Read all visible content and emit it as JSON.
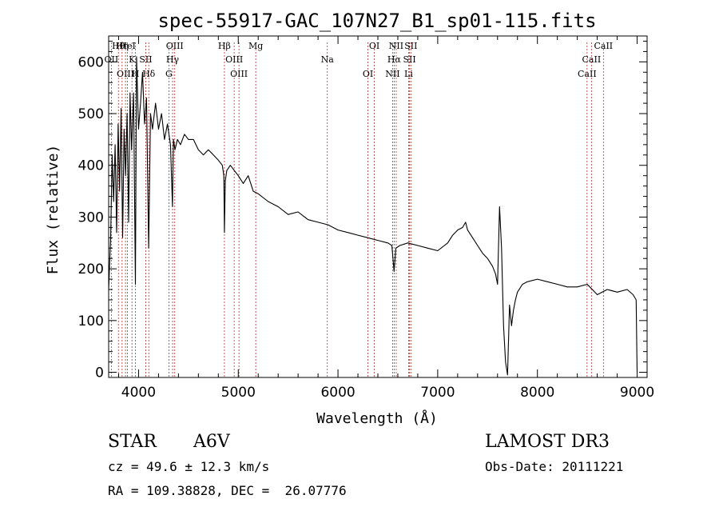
{
  "chart_data": {
    "type": "line",
    "title": "spec-55917-GAC_107N27_B1_sp01-115.fits",
    "xlabel": "Wavelength (Å)",
    "ylabel": "Flux (relative)",
    "xlim": [
      3700,
      9100
    ],
    "ylim": [
      -10,
      650
    ],
    "xticks": [
      4000,
      5000,
      6000,
      7000,
      8000,
      9000
    ],
    "yticks": [
      0,
      100,
      200,
      300,
      400,
      500,
      600
    ],
    "grid": false,
    "series": [
      {
        "name": "flux",
        "x": [
          3700,
          3720,
          3735,
          3750,
          3765,
          3780,
          3795,
          3810,
          3825,
          3840,
          3855,
          3870,
          3885,
          3900,
          3915,
          3930,
          3950,
          3968,
          3980,
          4000,
          4020,
          4040,
          4060,
          4080,
          4101,
          4120,
          4140,
          4170,
          4200,
          4230,
          4260,
          4290,
          4320,
          4340,
          4350,
          4365,
          4390,
          4420,
          4460,
          4500,
          4550,
          4600,
          4650,
          4700,
          4750,
          4800,
          4840,
          4855,
          4861,
          4870,
          4885,
          4920,
          4960,
          5000,
          5050,
          5100,
          5150,
          5200,
          5300,
          5400,
          5500,
          5600,
          5700,
          5800,
          5900,
          6000,
          6100,
          6200,
          6300,
          6400,
          6500,
          6540,
          6563,
          6580,
          6620,
          6700,
          6800,
          6900,
          7000,
          7100,
          7150,
          7200,
          7250,
          7280,
          7300,
          7350,
          7400,
          7450,
          7500,
          7550,
          7580,
          7600,
          7620,
          7640,
          7660,
          7680,
          7700,
          7720,
          7740,
          7760,
          7780,
          7800,
          7850,
          7900,
          8000,
          8100,
          8200,
          8300,
          8400,
          8500,
          8550,
          8600,
          8700,
          8800,
          8900,
          8960,
          8990,
          9000
        ],
        "y": [
          160,
          260,
          420,
          330,
          440,
          270,
          480,
          350,
          510,
          260,
          470,
          380,
          500,
          290,
          540,
          430,
          540,
          170,
          610,
          470,
          520,
          580,
          480,
          530,
          240,
          500,
          470,
          520,
          470,
          500,
          450,
          480,
          440,
          320,
          450,
          430,
          450,
          440,
          460,
          450,
          450,
          430,
          420,
          430,
          420,
          410,
          400,
          380,
          270,
          370,
          390,
          400,
          390,
          380,
          365,
          380,
          350,
          345,
          330,
          320,
          305,
          310,
          295,
          290,
          285,
          275,
          270,
          265,
          260,
          255,
          250,
          245,
          195,
          240,
          245,
          250,
          245,
          240,
          235,
          250,
          265,
          275,
          280,
          290,
          275,
          260,
          245,
          230,
          220,
          205,
          190,
          170,
          320,
          240,
          90,
          20,
          -5,
          130,
          90,
          120,
          140,
          155,
          170,
          175,
          180,
          175,
          170,
          165,
          165,
          170,
          160,
          150,
          160,
          155,
          160,
          150,
          140,
          0
        ]
      }
    ],
    "line_labels": [
      {
        "text": "Hθ",
        "wave": 3798
      },
      {
        "text": "OII",
        "wave": 3727
      },
      {
        "text": "OIII",
        "wave": 3869
      },
      {
        "text": "Hη",
        "wave": 3835
      },
      {
        "text": "K",
        "wave": 3934
      },
      {
        "text": "H",
        "wave": 3969
      },
      {
        "text": "HeI",
        "wave": 3889
      },
      {
        "text": "SII",
        "wave": 4072
      },
      {
        "text": "Hδ",
        "wave": 4102
      },
      {
        "text": "OIII",
        "wave": 4363
      },
      {
        "text": "Hγ",
        "wave": 4341
      },
      {
        "text": "G",
        "wave": 4304
      },
      {
        "text": "Hβ",
        "wave": 4861
      },
      {
        "text": "OIII",
        "wave": 4959
      },
      {
        "text": "OIII",
        "wave": 5007
      },
      {
        "text": "Mg",
        "wave": 5175
      },
      {
        "text": "Na",
        "wave": 5893
      },
      {
        "text": "OI",
        "wave": 6300
      },
      {
        "text": "OI",
        "wave": 6364
      },
      {
        "text": "Hα",
        "wave": 6563
      },
      {
        "text": "NII",
        "wave": 6548
      },
      {
        "text": "NII",
        "wave": 6584
      },
      {
        "text": "SII",
        "wave": 6717
      },
      {
        "text": "Li",
        "wave": 6708
      },
      {
        "text": "SII",
        "wave": 6731
      },
      {
        "text": "CaII",
        "wave": 8542
      },
      {
        "text": "CaII",
        "wave": 8498
      },
      {
        "text": "CaII",
        "wave": 8662
      }
    ]
  },
  "info": {
    "class": "STAR",
    "subclass": "A6V",
    "survey": "LAMOST DR3",
    "cz": "cz = 49.6 ± 12.3 km/s",
    "obs_date": "Obs-Date: 20111221",
    "coords": "RA = 109.38828, DEC =  26.07776"
  }
}
